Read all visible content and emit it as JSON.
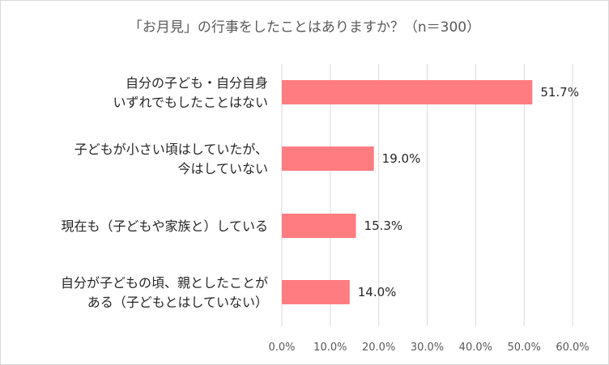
{
  "chart_data": {
    "type": "bar",
    "orientation": "horizontal",
    "title": "「お月見」の行事をしたことはありますか？（n＝300）",
    "categories": [
      [
        "自分の子ども・自分自身",
        "いずれでもしたことはない"
      ],
      [
        "子どもが小さい頃はしていたが、",
        "今はしていない"
      ],
      [
        "現在も（子どもや家族と）している"
      ],
      [
        "自分が子どもの頃、親としたことが",
        "ある（子どもとはしていない）"
      ]
    ],
    "values": [
      51.7,
      19.0,
      15.3,
      14.0
    ],
    "data_labels": [
      "51.7%",
      "19.0%",
      "15.3%",
      "14.0%"
    ],
    "xlim": [
      0,
      60
    ],
    "x_ticks": [
      0,
      10,
      20,
      30,
      40,
      50,
      60
    ],
    "x_tick_labels": [
      "0.0%",
      "10.0%",
      "20.0%",
      "30.0%",
      "40.0%",
      "50.0%",
      "60.0%"
    ],
    "grid": true,
    "bar_color": "#ff7c80"
  }
}
